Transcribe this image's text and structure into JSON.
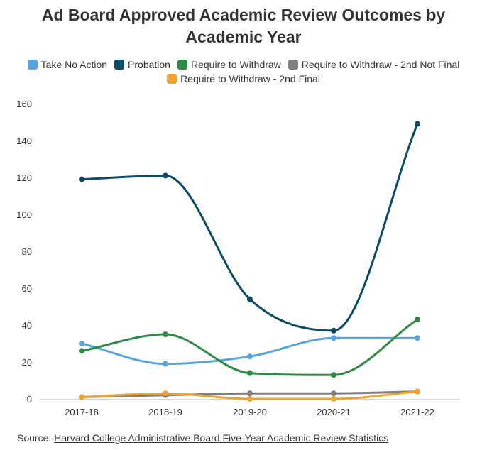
{
  "chart_data": {
    "type": "line",
    "title_lines": [
      "Ad Board Approved Academic Review Outcomes by",
      "Academic Year"
    ],
    "categories": [
      "2017-18",
      "2018-19",
      "2019-20",
      "2020-21",
      "2021-22"
    ],
    "ylim": [
      0,
      160
    ],
    "yticks": [
      0,
      20,
      40,
      60,
      80,
      100,
      120,
      140,
      160
    ],
    "grid": false,
    "legend_position": "top",
    "series": [
      {
        "name": "Take No Action",
        "color": "#56a6dd",
        "values": [
          30,
          19,
          23,
          33,
          33
        ]
      },
      {
        "name": "Probation",
        "color": "#0c4a66",
        "values": [
          119,
          121,
          54,
          37,
          149
        ]
      },
      {
        "name": "Require to Withdraw",
        "color": "#2f8a47",
        "values": [
          26,
          35,
          14,
          13,
          43
        ]
      },
      {
        "name": "Require to Withdraw - 2nd Not Final",
        "color": "#7f7f7f",
        "values": [
          1,
          2,
          3,
          3,
          4
        ]
      },
      {
        "name": "Require to Withdraw - 2nd Final",
        "color": "#f0a22e",
        "values": [
          1,
          3,
          0,
          0,
          4
        ]
      }
    ]
  },
  "source": {
    "prefix": "Source: ",
    "link_text": "Harvard College Administrative Board Five-Year Academic Review Statistics"
  }
}
